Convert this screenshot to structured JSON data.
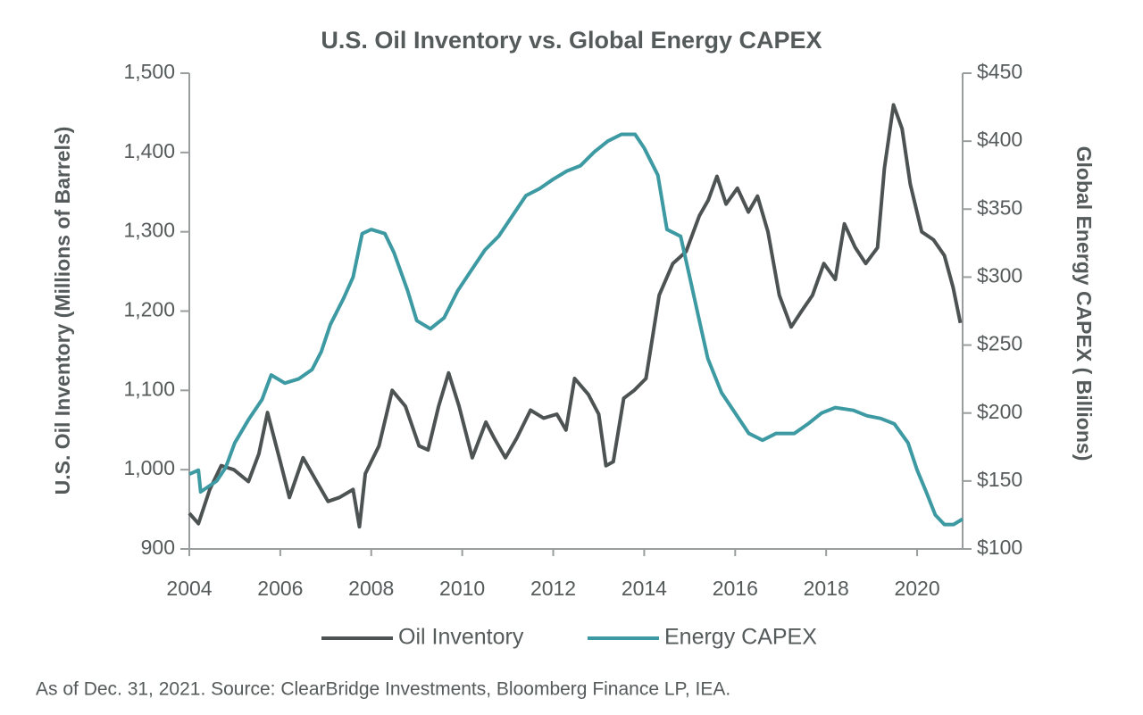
{
  "chart_data": {
    "type": "line",
    "title": "U.S. Oil Inventory vs. Global Energy CAPEX",
    "y_label": "U.S. Oil Inventory (Millions of Barrels)",
    "y2_label": "Global Energy CAPEX ( Billions)",
    "footnote": "As of Dec. 31, 2021. Source: ClearBridge Investments, Bloomberg Finance LP, IEA.",
    "xlim": [
      2004,
      2021
    ],
    "xticks": [
      2004,
      2006,
      2008,
      2010,
      2012,
      2014,
      2016,
      2018,
      2020
    ],
    "ylim": [
      900,
      1500
    ],
    "yticks": [
      {
        "value": 900,
        "label": "900"
      },
      {
        "value": 1000,
        "label": "1,000"
      },
      {
        "value": 1100,
        "label": "1,100"
      },
      {
        "value": 1200,
        "label": "1,200"
      },
      {
        "value": 1300,
        "label": "1,300"
      },
      {
        "value": 1400,
        "label": "1,400"
      },
      {
        "value": 1500,
        "label": "1,500"
      }
    ],
    "y2lim": [
      100,
      450
    ],
    "y2ticks": [
      {
        "value": 100,
        "label": "$100"
      },
      {
        "value": 150,
        "label": "$150"
      },
      {
        "value": 200,
        "label": "$200"
      },
      {
        "value": 250,
        "label": "$250"
      },
      {
        "value": 300,
        "label": "$300"
      },
      {
        "value": 350,
        "label": "$350"
      },
      {
        "value": 400,
        "label": "$400"
      },
      {
        "value": 450,
        "label": "$450"
      }
    ],
    "legend": "bottom",
    "series": [
      {
        "name": "Oil Inventory",
        "color": "#4d5352",
        "x": [
          2004.0,
          2004.2,
          2004.45,
          2004.7,
          2004.98,
          2005.3,
          2005.53,
          2005.72,
          2006.0,
          2006.2,
          2006.5,
          2006.8,
          2007.05,
          2007.3,
          2007.6,
          2007.74,
          2007.87,
          2008.17,
          2008.46,
          2008.75,
          2009.05,
          2009.25,
          2009.48,
          2009.7,
          2009.93,
          2010.22,
          2010.52,
          2010.7,
          2010.95,
          2011.2,
          2011.5,
          2011.79,
          2012.08,
          2012.28,
          2012.47,
          2012.77,
          2013.0,
          2013.16,
          2013.32,
          2013.55,
          2013.78,
          2014.04,
          2014.33,
          2014.63,
          2014.92,
          2015.21,
          2015.41,
          2015.6,
          2015.8,
          2016.05,
          2016.29,
          2016.49,
          2016.72,
          2016.97,
          2017.23,
          2017.46,
          2017.7,
          2017.95,
          2018.2,
          2018.4,
          2018.64,
          2018.87,
          2019.13,
          2019.28,
          2019.48,
          2019.67,
          2019.85,
          2020.1,
          2020.36,
          2020.6,
          2020.79,
          2020.95
        ],
        "values": [
          945,
          932,
          975,
          1005,
          1000,
          985,
          1020,
          1072,
          1010,
          965,
          1015,
          985,
          960,
          965,
          975,
          928,
          995,
          1030,
          1100,
          1080,
          1030,
          1025,
          1080,
          1122,
          1080,
          1015,
          1060,
          1040,
          1015,
          1040,
          1075,
          1065,
          1070,
          1050,
          1115,
          1095,
          1070,
          1005,
          1010,
          1090,
          1100,
          1115,
          1220,
          1260,
          1275,
          1320,
          1340,
          1370,
          1335,
          1355,
          1325,
          1345,
          1300,
          1220,
          1180,
          1200,
          1220,
          1260,
          1240,
          1310,
          1280,
          1260,
          1280,
          1380,
          1460,
          1430,
          1360,
          1300,
          1290,
          1270,
          1230,
          1185
        ]
      },
      {
        "name": "Energy CAPEX",
        "color": "#3d9aa3",
        "axis": "y2",
        "x": [
          2004.0,
          2004.2,
          2004.25,
          2004.6,
          2004.8,
          2005.0,
          2005.3,
          2005.6,
          2005.8,
          2006.1,
          2006.4,
          2006.7,
          2006.9,
          2007.1,
          2007.4,
          2007.6,
          2007.8,
          2008.0,
          2008.3,
          2008.5,
          2008.8,
          2009.0,
          2009.3,
          2009.6,
          2009.9,
          2010.2,
          2010.5,
          2010.8,
          2011.1,
          2011.4,
          2011.7,
          2012.0,
          2012.3,
          2012.6,
          2012.9,
          2013.2,
          2013.5,
          2013.8,
          2014.0,
          2014.3,
          2014.5,
          2014.8,
          2015.0,
          2015.2,
          2015.4,
          2015.7,
          2016.0,
          2016.3,
          2016.6,
          2016.9,
          2017.3,
          2017.6,
          2017.9,
          2018.2,
          2018.6,
          2018.9,
          2019.2,
          2019.5,
          2019.8,
          2020.0,
          2020.2,
          2020.4,
          2020.6,
          2020.8,
          2021.0
        ],
        "values": [
          155,
          158,
          142,
          150,
          160,
          178,
          195,
          210,
          228,
          222,
          225,
          232,
          245,
          265,
          285,
          300,
          332,
          335,
          332,
          318,
          290,
          268,
          262,
          270,
          290,
          305,
          320,
          330,
          345,
          360,
          365,
          372,
          378,
          382,
          392,
          400,
          405,
          405,
          395,
          375,
          335,
          330,
          300,
          270,
          240,
          215,
          200,
          185,
          180,
          185,
          185,
          192,
          200,
          204,
          202,
          198,
          196,
          192,
          178,
          158,
          142,
          125,
          118,
          118,
          122
        ]
      }
    ]
  }
}
